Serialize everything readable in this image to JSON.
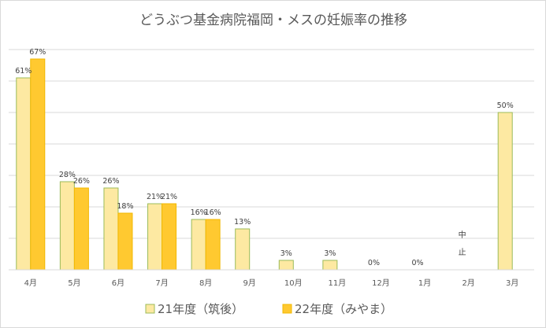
{
  "colors": {
    "series1_fill": "#fde9a2",
    "series1_stroke": "#9bbb59",
    "series2_fill": "#ffc930",
    "series2_stroke": "#f2b800",
    "grid": "#d9d9d9",
    "text": "#595959"
  },
  "chart_data": {
    "type": "bar",
    "title": "どうぶつ基金病院福岡・メスの妊娠率の推移",
    "xlabel": "",
    "ylabel": "",
    "ylim": [
      0,
      70
    ],
    "grid": true,
    "legend_position": "bottom",
    "categories": [
      "4月",
      "5月",
      "6月",
      "7月",
      "8月",
      "9月",
      "10月",
      "11月",
      "12月",
      "1月",
      "2月",
      "3月"
    ],
    "series": [
      {
        "name": "21年度（筑後）",
        "values": [
          61,
          28,
          26,
          21,
          16,
          13,
          3,
          3,
          0,
          0,
          null,
          50
        ],
        "labels": [
          "61%",
          "28%",
          "26%",
          "21%",
          "16%",
          "13%",
          "3%",
          "3%",
          "0%",
          "0%",
          null,
          "50%"
        ]
      },
      {
        "name": "22年度（みやま）",
        "values": [
          67,
          26,
          18,
          21,
          16,
          null,
          null,
          null,
          null,
          null,
          null,
          null
        ],
        "labels": [
          "67%",
          "26%",
          "18%",
          "21%",
          "16%",
          null,
          null,
          null,
          null,
          null,
          null,
          null
        ]
      }
    ],
    "annotations": [
      {
        "category": "2月",
        "text_lines": [
          "中",
          "止"
        ]
      }
    ]
  }
}
